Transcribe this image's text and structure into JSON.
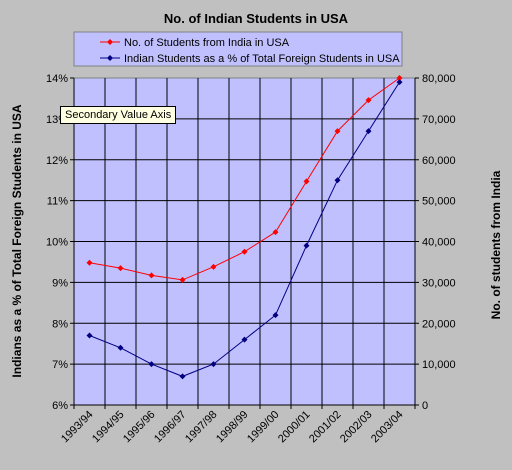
{
  "chart_data": {
    "type": "line",
    "title": "No. of Indian Students in USA",
    "categories": [
      "1993/94",
      "1994/95",
      "1995/96",
      "1996/97",
      "1997/98",
      "1998/99",
      "1999/00",
      "2000/01",
      "2001/02",
      "2002/03",
      "2003/04"
    ],
    "series": [
      {
        "name": "No. of Students from India in USA",
        "axis": "right",
        "color": "#ff0000",
        "values": [
          34800,
          33500,
          31700,
          30600,
          33800,
          37500,
          42300,
          54700,
          67000,
          74600,
          80000
        ]
      },
      {
        "name": "Indian Students as a % of Total Foreign Students in USA",
        "axis": "left",
        "color": "#000080",
        "values": [
          7.7,
          7.4,
          7.0,
          6.7,
          7.0,
          7.6,
          8.2,
          9.9,
          11.5,
          12.7,
          13.9
        ]
      }
    ],
    "left_axis": {
      "label": "Indians as a % of Total Foreign Students in USA",
      "min": 6,
      "max": 14,
      "step": 1,
      "tick_labels": [
        "6%",
        "7%",
        "8%",
        "9%",
        "10%",
        "11%",
        "12%",
        "13%",
        "14%"
      ]
    },
    "right_axis": {
      "label": "No. of students from India",
      "min": 0,
      "max": 80000,
      "step": 10000,
      "tick_labels": [
        "0",
        "10,000",
        "20,000",
        "30,000",
        "40,000",
        "50,000",
        "60,000",
        "70,000",
        "80,000"
      ]
    },
    "grid": true,
    "legend_position": "top",
    "plot_background": "#c0c0ff"
  },
  "tooltip": {
    "text": "Secondary Value Axis"
  }
}
